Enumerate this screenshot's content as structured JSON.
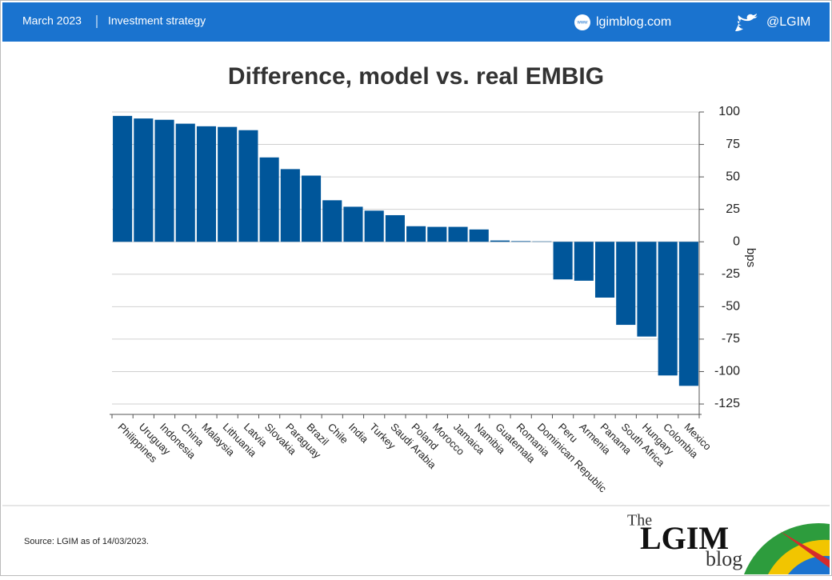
{
  "header": {
    "date": "March 2023",
    "section": "Investment strategy",
    "site_icon": "www",
    "site": "lgimblog.com",
    "handle": "@LGIM"
  },
  "chart_data": {
    "type": "bar",
    "title": "Difference, model vs. real EMBIG",
    "y_label": "bps",
    "categories": [
      "Philippines",
      "Uruguay",
      "Indonesia",
      "China",
      "Malaysia",
      "Lithuania",
      "Latvia",
      "Slovakia",
      "Paraguay",
      "Brazil",
      "Chile",
      "India",
      "Turkey",
      "Saudi Arabia",
      "Poland",
      "Morocco",
      "Jamaica",
      "Namibia",
      "Guatemala",
      "Romania",
      "Dominican Republic",
      "Peru",
      "Armenia",
      "Panama",
      "South Africa",
      "Hungary",
      "Colombia",
      "Mexico"
    ],
    "values": [
      97,
      95,
      94,
      91,
      89,
      88.5,
      86,
      65,
      56,
      51,
      32,
      27,
      24,
      20.5,
      12,
      11.5,
      11.5,
      9.5,
      1,
      0.5,
      0.3,
      -29,
      -30,
      -43,
      -64,
      -73,
      -103,
      -111
    ],
    "color": "#00569a",
    "ylim": [
      -133,
      100
    ],
    "yticks": [
      100,
      75,
      50,
      25,
      0,
      -25,
      -50,
      -75,
      -100,
      -125
    ],
    "grid": true,
    "y_axis_side": "right"
  },
  "footer": {
    "source": "Source: LGIM as of 14/03/2023.",
    "logo_the": "The",
    "logo_name": "LGIM",
    "logo_blog": "blog"
  }
}
